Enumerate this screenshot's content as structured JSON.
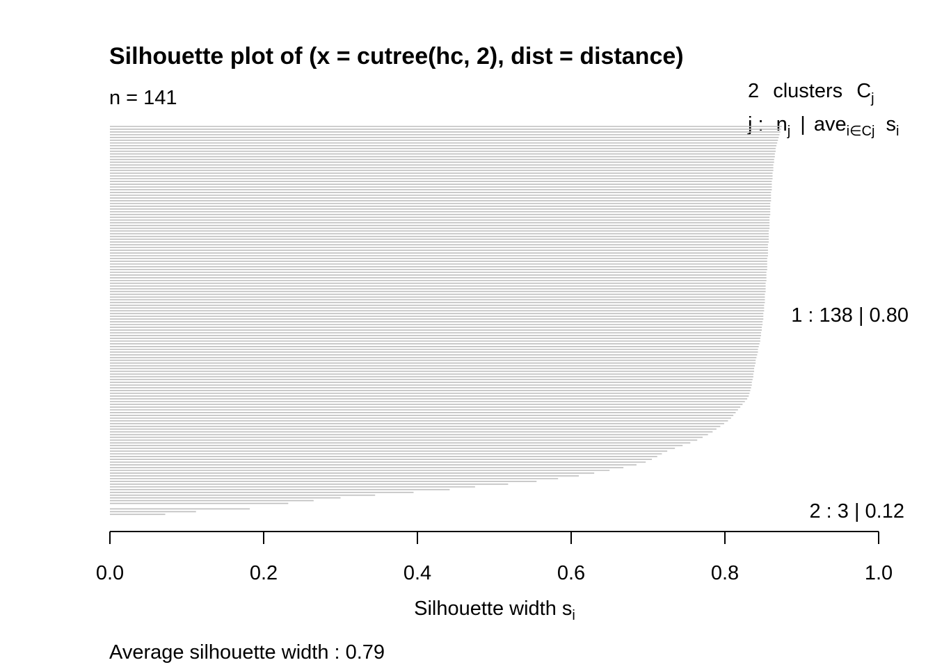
{
  "chart_data": {
    "type": "bar",
    "orientation": "horizontal",
    "title": "Silhouette plot of (x = cutree(hc, 2), dist = distance)",
    "n_label": "n = 141",
    "n": 141,
    "legend_header": {
      "line1": {
        "count": "2",
        "word": "clusters",
        "sym": "C",
        "sub": "j"
      },
      "line2": {
        "j": "j :",
        "n": "n",
        "n_sub": "j",
        "sep": "|",
        "ave": "ave",
        "ave_sub": "i∈Cj",
        "s": "s",
        "s_sub": "i"
      }
    },
    "xlabel": "Silhouette width s",
    "xlabel_sub": "i",
    "xlim": [
      0,
      1
    ],
    "xticks": [
      "0.0",
      "0.2",
      "0.4",
      "0.6",
      "0.8",
      "1.0"
    ],
    "bar_color": "#bebebe",
    "clusters": [
      {
        "label": "1 :   138  |  0.80",
        "size": 138,
        "avg_width": 0.8,
        "widths": [
          0.874,
          0.873,
          0.872,
          0.871,
          0.87,
          0.869,
          0.868,
          0.867,
          0.866,
          0.866,
          0.865,
          0.865,
          0.864,
          0.864,
          0.863,
          0.863,
          0.863,
          0.862,
          0.862,
          0.862,
          0.861,
          0.861,
          0.861,
          0.861,
          0.86,
          0.86,
          0.86,
          0.86,
          0.859,
          0.859,
          0.859,
          0.859,
          0.859,
          0.858,
          0.858,
          0.858,
          0.858,
          0.858,
          0.857,
          0.857,
          0.857,
          0.857,
          0.857,
          0.856,
          0.856,
          0.856,
          0.856,
          0.856,
          0.855,
          0.855,
          0.855,
          0.855,
          0.855,
          0.854,
          0.854,
          0.854,
          0.854,
          0.853,
          0.853,
          0.853,
          0.853,
          0.852,
          0.852,
          0.852,
          0.852,
          0.851,
          0.851,
          0.851,
          0.85,
          0.85,
          0.85,
          0.849,
          0.849,
          0.848,
          0.848,
          0.847,
          0.847,
          0.846,
          0.846,
          0.845,
          0.844,
          0.843,
          0.843,
          0.842,
          0.841,
          0.84,
          0.84,
          0.839,
          0.838,
          0.838,
          0.837,
          0.837,
          0.836,
          0.835,
          0.835,
          0.834,
          0.833,
          0.832,
          0.831,
          0.829,
          0.826,
          0.823,
          0.82,
          0.817,
          0.814,
          0.811,
          0.808,
          0.804,
          0.799,
          0.794,
          0.789,
          0.784,
          0.778,
          0.771,
          0.764,
          0.755,
          0.745,
          0.735,
          0.725,
          0.718,
          0.712,
          0.705,
          0.697,
          0.685,
          0.668,
          0.65,
          0.63,
          0.61,
          0.583,
          0.555,
          0.518,
          0.475,
          0.442,
          0.395,
          0.345,
          0.3,
          0.265,
          0.232
        ]
      },
      {
        "label": "2 :   3  |  0.12",
        "size": 3,
        "avg_width": 0.12,
        "widths": [
          0.182,
          0.112,
          0.072
        ]
      }
    ],
    "footer": "Average silhouette width :  0.79",
    "average_width": 0.79
  }
}
